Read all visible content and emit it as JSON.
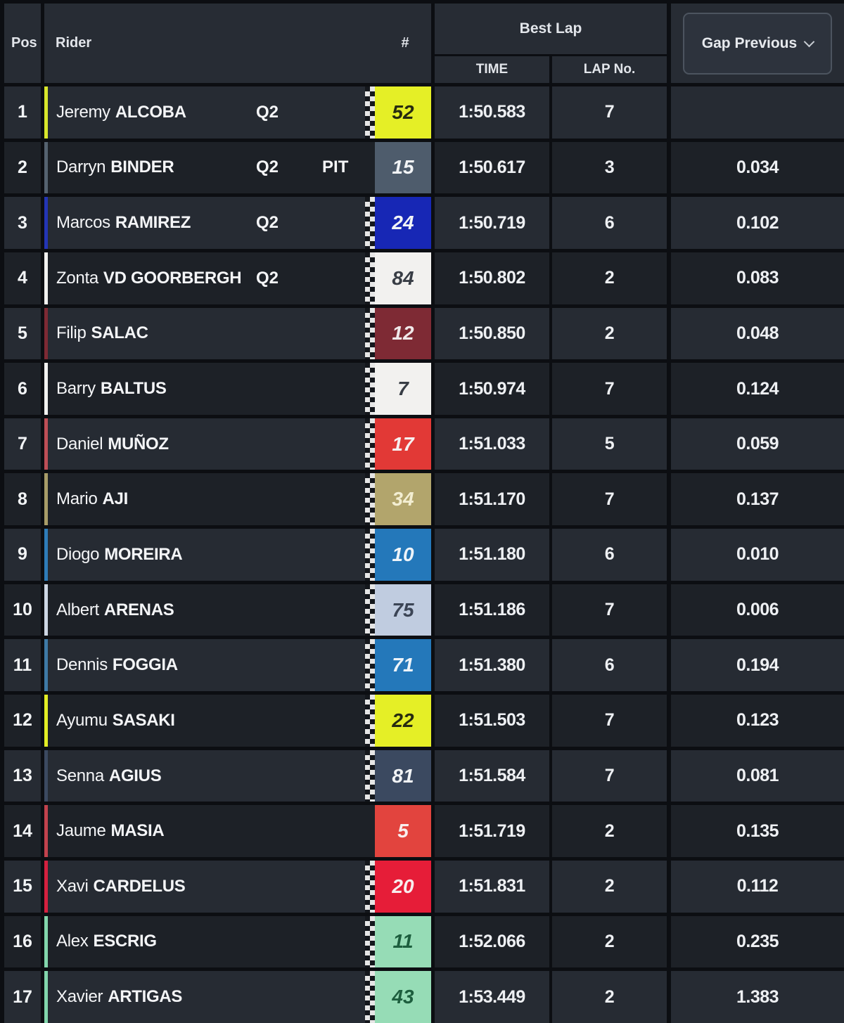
{
  "header": {
    "pos": "Pos",
    "rider": "Rider",
    "number": "#",
    "best_lap": "Best Lap",
    "time": "TIME",
    "lap_no": "LAP No.",
    "gap_button": "Gap Previous"
  },
  "ui_colors": {
    "row_odd_bg": "#262b33",
    "row_even_bg": "#1d2127",
    "header_bg": "#272c34",
    "separator": "#0c0e12",
    "text": "#f4f5f7",
    "button_border": "#4c545f",
    "button_bg": "#2d333d"
  },
  "rows": [
    {
      "pos": "1",
      "first": "Jeremy",
      "last": "ALCOBA",
      "q2": "Q2",
      "pit": "",
      "number": "52",
      "plate_bg": "#e5ef26",
      "plate_text": "#272b10",
      "bar": "#d9e62b",
      "checker": true,
      "time": "1:50.583",
      "lap": "7",
      "gap": ""
    },
    {
      "pos": "2",
      "first": "Darryn",
      "last": "BINDER",
      "q2": "Q2",
      "pit": "PIT",
      "number": "15",
      "plate_bg": "#4e5c6c",
      "plate_text": "#f2f4f6",
      "bar": "#55626f",
      "checker": false,
      "time": "1:50.617",
      "lap": "3",
      "gap": "0.034"
    },
    {
      "pos": "3",
      "first": "Marcos",
      "last": "RAMIREZ",
      "q2": "Q2",
      "pit": "",
      "number": "24",
      "plate_bg": "#1727b5",
      "plate_text": "#f2f4f6",
      "bar": "#2335b5",
      "checker": true,
      "time": "1:50.719",
      "lap": "6",
      "gap": "0.102"
    },
    {
      "pos": "4",
      "first": "Zonta",
      "last": "VD GOORBERGH",
      "q2": "Q2",
      "pit": "",
      "number": "84",
      "plate_bg": "#f2f1ef",
      "plate_text": "#383d45",
      "bar": "#f2f2f0",
      "checker": true,
      "time": "1:50.802",
      "lap": "2",
      "gap": "0.083"
    },
    {
      "pos": "5",
      "first": "Filip",
      "last": "SALAC",
      "q2": "",
      "pit": "",
      "number": "12",
      "plate_bg": "#7e2a34",
      "plate_text": "#f0e9ea",
      "bar": "#7e2a34",
      "checker": true,
      "time": "1:50.850",
      "lap": "2",
      "gap": "0.048"
    },
    {
      "pos": "6",
      "first": "Barry",
      "last": "BALTUS",
      "q2": "",
      "pit": "",
      "number": "7",
      "plate_bg": "#f2f1ef",
      "plate_text": "#383d45",
      "bar": "#f2f2f0",
      "checker": true,
      "time": "1:50.974",
      "lap": "7",
      "gap": "0.124"
    },
    {
      "pos": "7",
      "first": "Daniel",
      "last": "MUÑOZ",
      "q2": "",
      "pit": "",
      "number": "17",
      "plate_bg": "#e23936",
      "plate_text": "#f6f0f0",
      "bar": "#bd4e56",
      "checker": true,
      "time": "1:51.033",
      "lap": "5",
      "gap": "0.059"
    },
    {
      "pos": "8",
      "first": "Mario",
      "last": "AJI",
      "q2": "",
      "pit": "",
      "number": "34",
      "plate_bg": "#b2a56c",
      "plate_text": "#f3eed2",
      "bar": "#a89c68",
      "checker": true,
      "time": "1:51.170",
      "lap": "7",
      "gap": "0.137"
    },
    {
      "pos": "9",
      "first": "Diogo",
      "last": "MOREIRA",
      "q2": "",
      "pit": "",
      "number": "10",
      "plate_bg": "#2478ba",
      "plate_text": "#eef4f9",
      "bar": "#2e7cb8",
      "checker": true,
      "time": "1:51.180",
      "lap": "6",
      "gap": "0.010"
    },
    {
      "pos": "10",
      "first": "Albert",
      "last": "ARENAS",
      "q2": "",
      "pit": "",
      "number": "75",
      "plate_bg": "#c0cce0",
      "plate_text": "#3b4455",
      "bar": "#cdd6e3",
      "checker": true,
      "time": "1:51.186",
      "lap": "7",
      "gap": "0.006"
    },
    {
      "pos": "11",
      "first": "Dennis",
      "last": "FOGGIA",
      "q2": "",
      "pit": "",
      "number": "71",
      "plate_bg": "#2478ba",
      "plate_text": "#eef4f9",
      "bar": "#3e7aa6",
      "checker": true,
      "time": "1:51.380",
      "lap": "6",
      "gap": "0.194"
    },
    {
      "pos": "12",
      "first": "Ayumu",
      "last": "SASAKI",
      "q2": "",
      "pit": "",
      "number": "22",
      "plate_bg": "#e5ef26",
      "plate_text": "#272b10",
      "bar": "#e3ed24",
      "checker": true,
      "time": "1:51.503",
      "lap": "7",
      "gap": "0.123"
    },
    {
      "pos": "13",
      "first": "Senna",
      "last": "AGIUS",
      "q2": "",
      "pit": "",
      "number": "81",
      "plate_bg": "#3b4960",
      "plate_text": "#f2f4f6",
      "bar": "#3b4960",
      "checker": true,
      "time": "1:51.584",
      "lap": "7",
      "gap": "0.081"
    },
    {
      "pos": "14",
      "first": "Jaume",
      "last": "MASIA",
      "q2": "",
      "pit": "",
      "number": "5",
      "plate_bg": "#e2443e",
      "plate_text": "#f8eeee",
      "bar": "#c2424d",
      "checker": false,
      "time": "1:51.719",
      "lap": "2",
      "gap": "0.135"
    },
    {
      "pos": "15",
      "first": "Xavi",
      "last": "CARDELUS",
      "q2": "",
      "pit": "",
      "number": "20",
      "plate_bg": "#e61d38",
      "plate_text": "#f8eeee",
      "bar": "#d5203f",
      "checker": true,
      "time": "1:51.831",
      "lap": "2",
      "gap": "0.112"
    },
    {
      "pos": "16",
      "first": "Alex",
      "last": "ESCRIG",
      "q2": "",
      "pit": "",
      "number": "11",
      "plate_bg": "#96dcb6",
      "plate_text": "#1d5e3e",
      "bar": "#82d6ac",
      "checker": true,
      "time": "1:52.066",
      "lap": "2",
      "gap": "0.235"
    },
    {
      "pos": "17",
      "first": "Xavier",
      "last": "ARTIGAS",
      "q2": "",
      "pit": "",
      "number": "43",
      "plate_bg": "#96dcb6",
      "plate_text": "#1d5e3e",
      "bar": "#82d6ac",
      "checker": true,
      "time": "1:53.449",
      "lap": "2",
      "gap": "1.383"
    }
  ]
}
